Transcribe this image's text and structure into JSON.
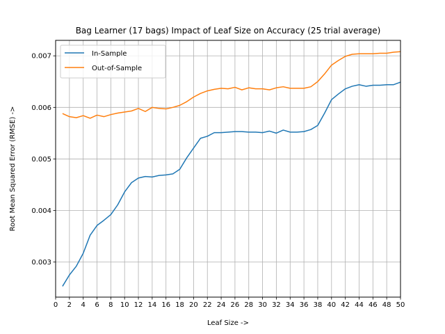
{
  "chart_data": {
    "type": "line",
    "title": "Bag Learner (17 bags) Impact of Leaf Size on Accuracy (25 trial average)",
    "xlabel": "Leaf Size ->",
    "ylabel": "Root Mean Squared Error (RMSE) ->",
    "xlim": [
      0,
      50
    ],
    "ylim": [
      0.00232,
      0.0073
    ],
    "grid": true,
    "legend_position": "upper-left",
    "x_ticks": [
      0,
      2,
      4,
      6,
      8,
      10,
      12,
      14,
      16,
      18,
      20,
      22,
      24,
      26,
      28,
      30,
      32,
      34,
      36,
      38,
      40,
      42,
      44,
      46,
      48,
      50
    ],
    "x_tick_labels": [
      "0",
      "2",
      "4",
      "6",
      "8",
      "10",
      "12",
      "14",
      "16",
      "18",
      "20",
      "22",
      "24",
      "26",
      "28",
      "30",
      "32",
      "34",
      "36",
      "38",
      "40",
      "42",
      "44",
      "46",
      "48",
      "50"
    ],
    "y_ticks": [
      0.003,
      0.004,
      0.005,
      0.006,
      0.007
    ],
    "y_tick_labels": [
      "0.003",
      "0.004",
      "0.005",
      "0.006",
      "0.007"
    ],
    "x": [
      1,
      2,
      3,
      4,
      5,
      6,
      7,
      8,
      9,
      10,
      11,
      12,
      13,
      14,
      15,
      16,
      17,
      18,
      19,
      20,
      21,
      22,
      23,
      24,
      25,
      26,
      27,
      28,
      29,
      30,
      31,
      32,
      33,
      34,
      35,
      36,
      37,
      38,
      39,
      40,
      41,
      42,
      43,
      44,
      45,
      46,
      47,
      48,
      49,
      50
    ],
    "series": [
      {
        "name": "In-Sample",
        "color": "#1f77b4",
        "values": [
          0.00253,
          0.00275,
          0.00292,
          0.00317,
          0.00352,
          0.00371,
          0.00381,
          0.00392,
          0.00411,
          0.00436,
          0.00454,
          0.00463,
          0.00466,
          0.00465,
          0.00468,
          0.00469,
          0.00471,
          0.0048,
          0.00502,
          0.00521,
          0.0054,
          0.00544,
          0.00551,
          0.00551,
          0.00552,
          0.00553,
          0.00553,
          0.00552,
          0.00552,
          0.00551,
          0.00554,
          0.0055,
          0.00556,
          0.00552,
          0.00552,
          0.00553,
          0.00557,
          0.00565,
          0.00589,
          0.00615,
          0.00626,
          0.00636,
          0.00641,
          0.00644,
          0.00641,
          0.00643,
          0.00643,
          0.00644,
          0.00644,
          0.00649
        ]
      },
      {
        "name": "Out-of-Sample",
        "color": "#ff7f0e",
        "values": [
          0.00588,
          0.00582,
          0.0058,
          0.00584,
          0.00579,
          0.00585,
          0.00582,
          0.00586,
          0.00589,
          0.00591,
          0.00593,
          0.00598,
          0.00592,
          0.006,
          0.00598,
          0.00597,
          0.006,
          0.00604,
          0.00611,
          0.0062,
          0.00627,
          0.00632,
          0.00635,
          0.00637,
          0.00636,
          0.00639,
          0.00634,
          0.00638,
          0.00636,
          0.00636,
          0.00634,
          0.00638,
          0.0064,
          0.00637,
          0.00637,
          0.00637,
          0.0064,
          0.0065,
          0.00665,
          0.00682,
          0.00691,
          0.00699,
          0.00703,
          0.00704,
          0.00704,
          0.00704,
          0.00705,
          0.00705,
          0.00707,
          0.00708
        ]
      }
    ]
  }
}
